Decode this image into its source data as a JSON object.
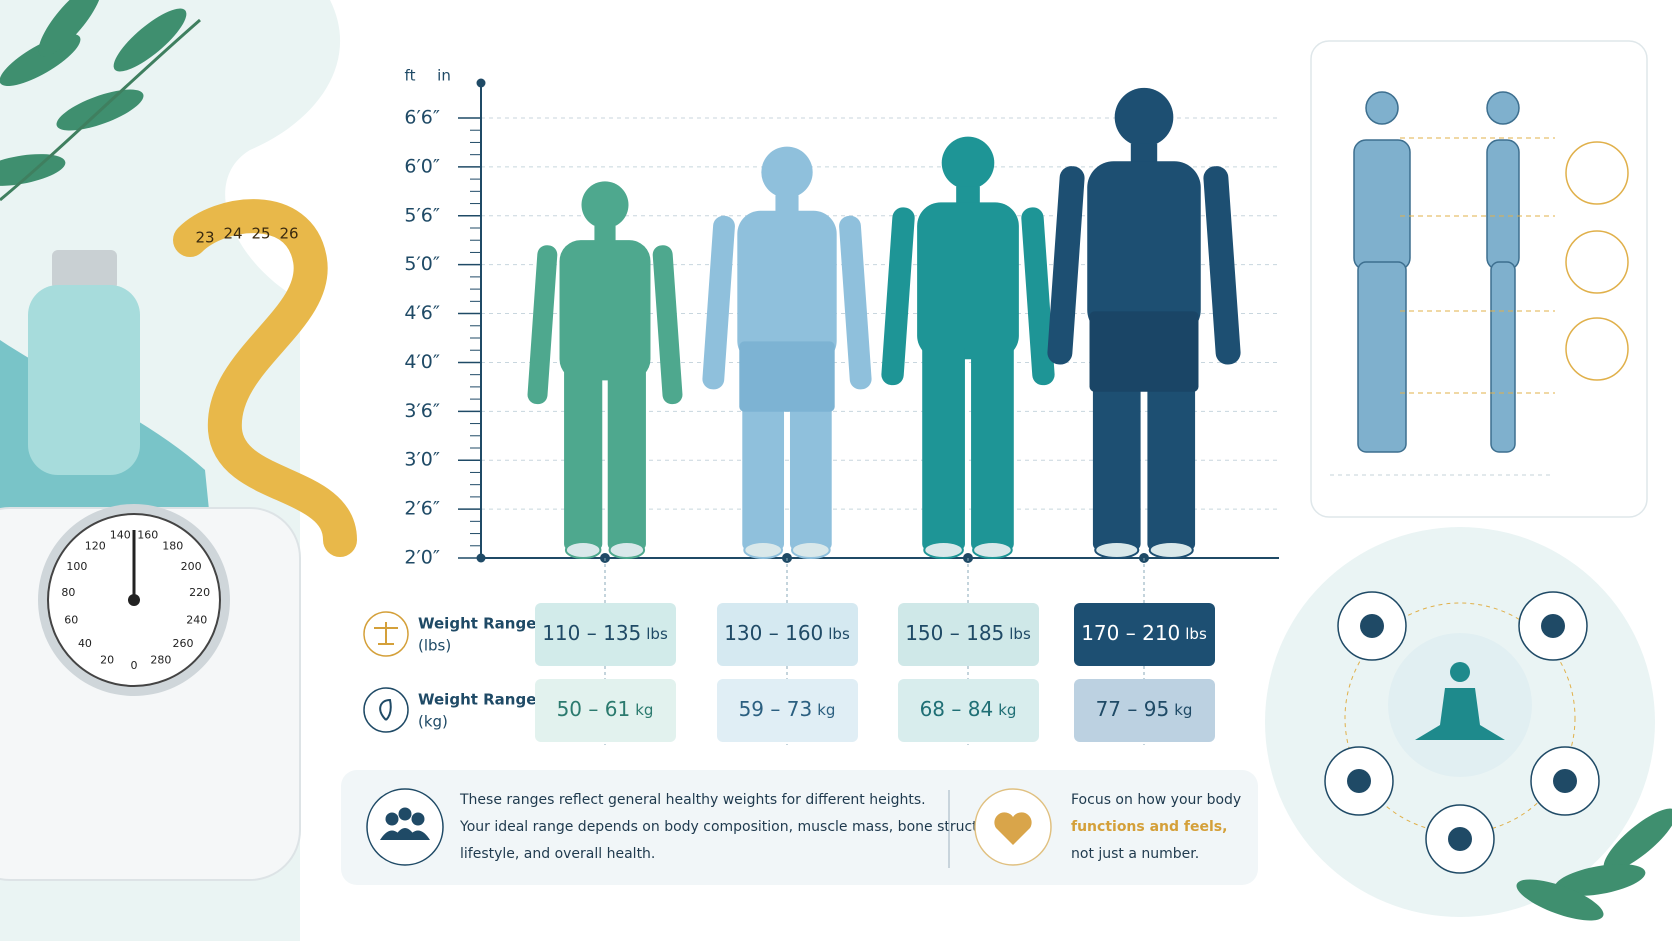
{
  "axis": {
    "units": [
      "ft",
      "in"
    ],
    "ticks": [
      "6′6″",
      "6′0″",
      "5′6″",
      "5′0″",
      "4′6″",
      "4′0″",
      "3′6″",
      "3′0″",
      "2′6″",
      "2′0″"
    ]
  },
  "rows": [
    {
      "label": "Weight Range",
      "unit": "(lbs)",
      "cells": [
        {
          "range": "110 – 135",
          "unit": "lbs"
        },
        {
          "range": "130 – 160",
          "unit": "lbs"
        },
        {
          "range": "150 – 185",
          "unit": "lbs"
        },
        {
          "range": "170 – 210",
          "unit": "lbs"
        }
      ]
    },
    {
      "label": "Weight Range",
      "unit": "(kg)",
      "cells": [
        {
          "range": "50 – 61",
          "unit": "kg"
        },
        {
          "range": "59 – 73",
          "unit": "kg"
        },
        {
          "range": "68 – 84",
          "unit": "kg"
        },
        {
          "range": "77 – 95",
          "unit": "kg"
        }
      ]
    }
  ],
  "note": {
    "lines": [
      "These ranges reflect general healthy weights for different heights.",
      "Your ideal range depends on body composition, muscle mass, bone structure,",
      "lifestyle, and overall health."
    ]
  },
  "quote": {
    "lines": [
      "Focus on how your body",
      "functions and feels,",
      "not just a number."
    ]
  },
  "scale_dial": [
    "0",
    "20",
    "40",
    "60",
    "80",
    "100",
    "120",
    "140",
    "160",
    "180",
    "200",
    "220",
    "240",
    "260",
    "280"
  ],
  "tape": [
    "23",
    "24",
    "25",
    "26"
  ]
}
